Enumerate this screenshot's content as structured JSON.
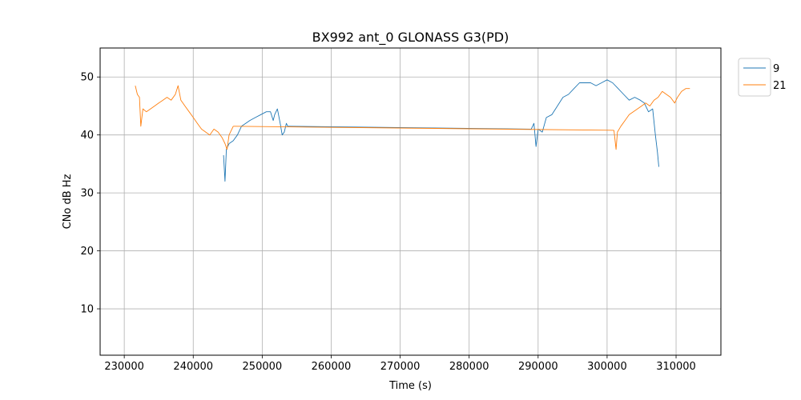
{
  "chart_data": {
    "type": "line",
    "title": "BX992 ant_0 GLONASS G3(PD)",
    "xlabel": "Time (s)",
    "ylabel": "CNo dB Hz",
    "xlim": [
      226500,
      316500
    ],
    "ylim": [
      2,
      55
    ],
    "xticks": [
      230000,
      240000,
      250000,
      260000,
      270000,
      280000,
      290000,
      300000,
      310000
    ],
    "yticks": [
      10,
      20,
      30,
      40,
      50
    ],
    "grid": true,
    "legend_position": "outside-top-right",
    "series": [
      {
        "name": "9",
        "color": "#1f77b4",
        "segments": [
          [
            [
              244400,
              36.5
            ],
            [
              244600,
              32.0
            ],
            [
              244800,
              37.5
            ],
            [
              245200,
              38.5
            ],
            [
              245800,
              39.0
            ],
            [
              246400,
              40.0
            ],
            [
              247000,
              41.5
            ],
            [
              247600,
              42.0
            ],
            [
              248200,
              42.5
            ],
            [
              249000,
              43.0
            ],
            [
              249800,
              43.5
            ],
            [
              250600,
              44.0
            ],
            [
              251200,
              44.0
            ],
            [
              251600,
              42.5
            ],
            [
              251800,
              43.5
            ],
            [
              252200,
              44.5
            ],
            [
              252600,
              42.0
            ],
            [
              252900,
              40.0
            ],
            [
              253200,
              40.5
            ],
            [
              253500,
              42.0
            ],
            [
              253700,
              41.5
            ]
          ],
          [
            [
              253700,
              41.5
            ],
            [
              289000,
              41.0
            ]
          ],
          [
            [
              289000,
              41.0
            ],
            [
              289400,
              42.0
            ],
            [
              289700,
              38.0
            ],
            [
              290000,
              41.0
            ],
            [
              290600,
              40.5
            ],
            [
              291200,
              43.0
            ],
            [
              292000,
              43.5
            ],
            [
              292800,
              45.0
            ],
            [
              293600,
              46.5
            ],
            [
              294400,
              47.0
            ],
            [
              295200,
              48.0
            ],
            [
              296000,
              49.0
            ],
            [
              296800,
              49.0
            ],
            [
              297600,
              49.0
            ],
            [
              298400,
              48.5
            ],
            [
              299200,
              49.0
            ],
            [
              300000,
              49.5
            ],
            [
              300800,
              49.0
            ],
            [
              301600,
              48.0
            ],
            [
              302400,
              47.0
            ],
            [
              303200,
              46.0
            ],
            [
              304000,
              46.5
            ],
            [
              304800,
              46.0
            ],
            [
              305400,
              45.5
            ],
            [
              306000,
              44.0
            ],
            [
              306600,
              44.5
            ],
            [
              307000,
              40.0
            ],
            [
              307300,
              37.0
            ],
            [
              307500,
              34.5
            ]
          ]
        ]
      },
      {
        "name": "21",
        "color": "#ff7f0e",
        "segments": [
          [
            [
              231600,
              48.5
            ],
            [
              231900,
              47.0
            ],
            [
              232200,
              46.5
            ],
            [
              232400,
              41.5
            ],
            [
              232700,
              44.5
            ],
            [
              233200,
              44.0
            ],
            [
              233800,
              44.5
            ],
            [
              234400,
              45.0
            ],
            [
              235000,
              45.5
            ],
            [
              235600,
              46.0
            ],
            [
              236200,
              46.5
            ],
            [
              236800,
              46.0
            ],
            [
              237400,
              47.0
            ],
            [
              237800,
              48.5
            ],
            [
              238200,
              46.0
            ],
            [
              238800,
              45.0
            ],
            [
              239400,
              44.0
            ],
            [
              240000,
              43.0
            ],
            [
              240600,
              42.0
            ],
            [
              241200,
              41.0
            ],
            [
              241800,
              40.5
            ],
            [
              242400,
              40.0
            ],
            [
              243000,
              41.0
            ],
            [
              243600,
              40.5
            ],
            [
              244200,
              39.5
            ],
            [
              244600,
              38.5
            ],
            [
              244900,
              37.5
            ],
            [
              245200,
              40.0
            ],
            [
              245800,
              41.5
            ]
          ],
          [
            [
              245800,
              41.5
            ],
            [
              301000,
              40.8
            ]
          ],
          [
            [
              301000,
              40.8
            ],
            [
              301300,
              37.5
            ],
            [
              301500,
              40.5
            ],
            [
              302000,
              41.5
            ],
            [
              302600,
              42.5
            ],
            [
              303200,
              43.5
            ],
            [
              303800,
              44.0
            ],
            [
              304400,
              44.5
            ],
            [
              305000,
              45.0
            ],
            [
              305600,
              45.5
            ],
            [
              306200,
              45.0
            ],
            [
              306800,
              46.0
            ],
            [
              307400,
              46.5
            ],
            [
              308000,
              47.5
            ],
            [
              308600,
              47.0
            ],
            [
              309200,
              46.5
            ],
            [
              309800,
              45.5
            ],
            [
              310200,
              46.5
            ],
            [
              310800,
              47.5
            ],
            [
              311400,
              48.0
            ],
            [
              312000,
              48.0
            ]
          ]
        ]
      }
    ]
  }
}
